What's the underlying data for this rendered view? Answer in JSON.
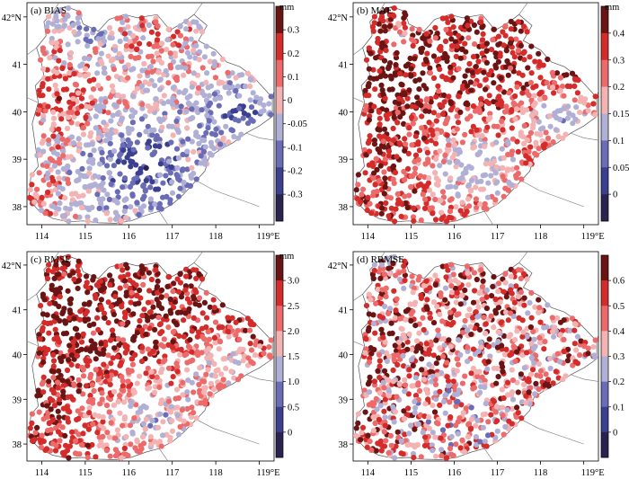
{
  "palette": [
    "#2a2350",
    "#3a3f8f",
    "#6a6cb6",
    "#b0b0d6",
    "#f3b3b3",
    "#ec6a6a",
    "#d42b2b",
    "#6b1414"
  ],
  "panels": [
    {
      "id": "bias",
      "title": "(a) BIAS",
      "unit": "mm",
      "colorbar_labels": [
        "0.3",
        "0.2",
        "0.1",
        "0",
        "-0.05",
        "-0.1",
        "-0.2",
        "-0.3"
      ],
      "colorbar_ticks": [
        0.3,
        0.2,
        0.1,
        0,
        -0.05,
        -0.1,
        -0.2,
        -0.3
      ]
    },
    {
      "id": "mae",
      "title": "(b) MAE",
      "unit": "mm",
      "colorbar_labels": [
        "0.4",
        "0.3",
        "0.2",
        "0.15",
        "0.1",
        "0.05",
        "0"
      ],
      "colorbar_ticks": [
        0.4,
        0.3,
        0.2,
        0.15,
        0.1,
        0.05,
        0
      ]
    },
    {
      "id": "rmse",
      "title": "(c) RMSE",
      "unit": "mm",
      "colorbar_labels": [
        "3.0",
        "2.5",
        "2.0",
        "1.5",
        "1.0",
        "0.5",
        "0"
      ],
      "colorbar_ticks": [
        3.0,
        2.5,
        2.0,
        1.5,
        1.0,
        0.5,
        0
      ]
    },
    {
      "id": "rrmse",
      "title": "(d) RRMSE",
      "unit": "",
      "colorbar_labels": [
        "0.6",
        "0.5",
        "0.4",
        "0.3",
        "0.2",
        "0.1",
        "0"
      ],
      "colorbar_ticks": [
        0.6,
        0.5,
        0.4,
        0.3,
        0.2,
        0.1,
        0
      ]
    }
  ],
  "axes": {
    "lon_ticks": [
      114,
      115,
      116,
      117,
      118,
      119
    ],
    "lon_labels": [
      "114",
      "115",
      "116",
      "117",
      "118",
      "119°E"
    ],
    "lat_ticks": [
      42,
      41,
      40,
      39,
      38
    ],
    "lat_labels": [
      "42°N",
      "41",
      "40",
      "39",
      "38"
    ]
  }
}
